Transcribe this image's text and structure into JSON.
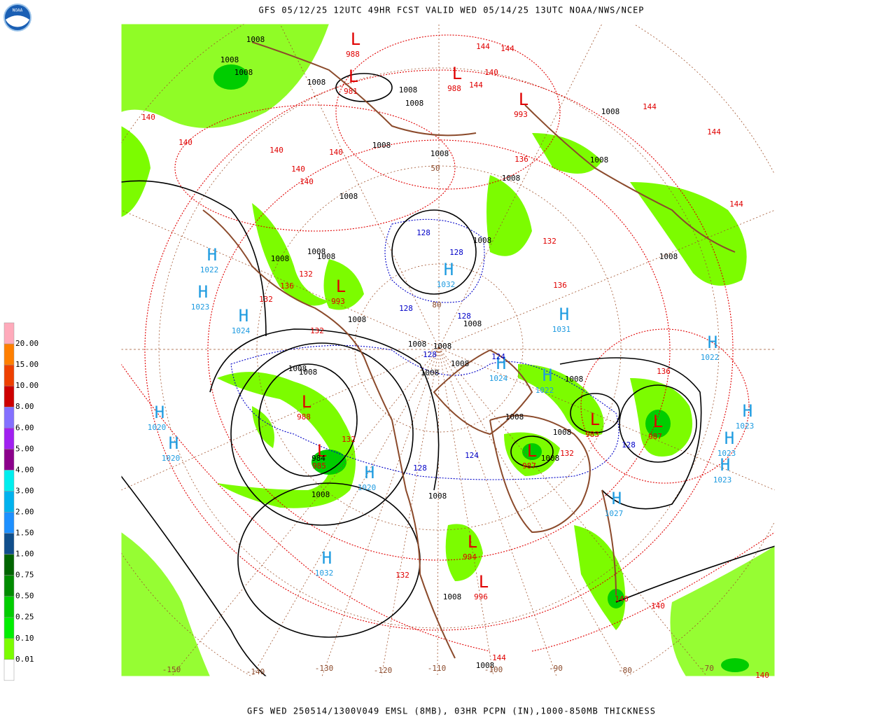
{
  "header": {
    "title": "GFS 05/12/25 12UTC 49HR FCST VALID WED 05/14/25 13UTC NOAA/NWS/NCEP",
    "footer": "GFS WED 250514/1300V049 EMSL (8MB), 03HR PCPN (IN),1000-850MB THICKNESS",
    "logo": "NOAA"
  },
  "legend": {
    "labels": [
      "0.01",
      "0.10",
      "0.25",
      "0.50",
      "0.75",
      "1.00",
      "1.50",
      "2.00",
      "3.00",
      "4.00",
      "5.00",
      "6.00",
      "8.00",
      "10.00",
      "15.00",
      "20.00"
    ],
    "colors": [
      "#ffffff",
      "#7cfc00",
      "#00ee00",
      "#00cd00",
      "#008b00",
      "#006400",
      "#104e8b",
      "#1e90ff",
      "#00b2ee",
      "#00eeee",
      "#8b008b",
      "#a020f0",
      "#8470ff",
      "#cd0000",
      "#ee4000",
      "#ff7f00",
      "#f4a460",
      "#ffaabb"
    ]
  },
  "map": {
    "highs": [
      {
        "letter": "H",
        "value": 1022
      },
      {
        "letter": "H",
        "value": 1023
      },
      {
        "letter": "H",
        "value": 1024
      },
      {
        "letter": "H",
        "value": 1020
      },
      {
        "letter": "H",
        "value": 1020
      },
      {
        "letter": "H",
        "value": 1032
      },
      {
        "letter": "H",
        "value": 1032
      },
      {
        "letter": "H",
        "value": 1031
      },
      {
        "letter": "H",
        "value": 1022
      },
      {
        "letter": "H",
        "value": 1024
      },
      {
        "letter": "H",
        "value": 1022
      },
      {
        "letter": "H",
        "value": 1023
      },
      {
        "letter": "H",
        "value": 1023
      },
      {
        "letter": "H",
        "value": 1023
      },
      {
        "letter": "H",
        "value": 1027
      },
      {
        "letter": "H",
        "value": 1020
      }
    ],
    "lows": [
      {
        "letter": "L",
        "value": 988
      },
      {
        "letter": "L",
        "value": 985
      },
      {
        "letter": "L",
        "value": 993
      },
      {
        "letter": "L",
        "value": 981
      },
      {
        "letter": "L",
        "value": 988
      },
      {
        "letter": "L",
        "value": 983
      },
      {
        "letter": "L",
        "value": 987
      },
      {
        "letter": "L",
        "value": 987
      },
      {
        "letter": "L",
        "value": 994
      },
      {
        "letter": "L",
        "value": 996
      },
      {
        "letter": "L",
        "value": 988
      },
      {
        "letter": "L",
        "value": 993
      }
    ],
    "isobar_labels": [
      1008,
      1008,
      1008,
      1008,
      1008,
      1008,
      1008,
      1008,
      1008,
      1008,
      1008,
      1008,
      1008,
      1008,
      1008,
      1008,
      1008,
      1008,
      1008,
      1008,
      1008,
      1008,
      1008,
      1008,
      1008,
      1008,
      1008,
      1008,
      1008,
      1008,
      1008,
      1008,
      1008,
      984
    ],
    "thickness_labels_warm": [
      140,
      140,
      140,
      140,
      140,
      140,
      144,
      144,
      144,
      140,
      144,
      144,
      144,
      136,
      132,
      136,
      132,
      132,
      132,
      136,
      136,
      132,
      132,
      132,
      144,
      140,
      140,
      140
    ],
    "thickness_labels_cold": [
      128,
      128,
      128,
      128,
      128,
      124,
      124,
      128,
      128
    ],
    "longitude_labels": [
      -150,
      -140,
      -130,
      -120,
      -110,
      -100,
      -90,
      -80,
      -70
    ],
    "latitude_labels": [
      50,
      80
    ]
  }
}
